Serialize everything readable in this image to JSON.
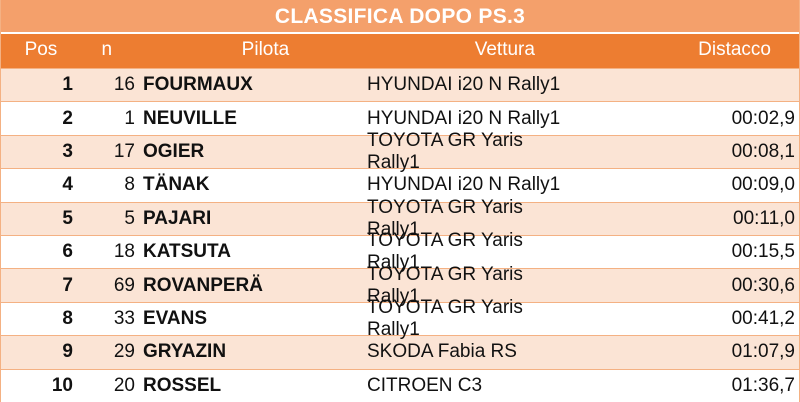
{
  "title": "CLASSIFICA DOPO PS.3",
  "columns": {
    "pos": "Pos",
    "n": "n",
    "pilota": "Pilota",
    "vettura": "Vettura",
    "distacco": "Distacco"
  },
  "rows": [
    {
      "pos": "1",
      "n": "16",
      "pilota": "FOURMAUX",
      "vettura": "HYUNDAI i20 N Rally1",
      "distacco": ""
    },
    {
      "pos": "2",
      "n": "1",
      "pilota": "NEUVILLE",
      "vettura": "HYUNDAI i20 N Rally1",
      "distacco": "00:02,9"
    },
    {
      "pos": "3",
      "n": "17",
      "pilota": "OGIER",
      "vettura": "TOYOTA GR Yaris Rally1",
      "distacco": "00:08,1"
    },
    {
      "pos": "4",
      "n": "8",
      "pilota": "TÄNAK",
      "vettura": "HYUNDAI i20 N Rally1",
      "distacco": "00:09,0"
    },
    {
      "pos": "5",
      "n": "5",
      "pilota": "PAJARI",
      "vettura": "TOYOTA GR Yaris Rally1",
      "distacco": "00:11,0"
    },
    {
      "pos": "6",
      "n": "18",
      "pilota": "KATSUTA",
      "vettura": "TOYOTA GR Yaris Rally1",
      "distacco": "00:15,5"
    },
    {
      "pos": "7",
      "n": "69",
      "pilota": "ROVANPERÄ",
      "vettura": "TOYOTA GR Yaris Rally1",
      "distacco": "00:30,6"
    },
    {
      "pos": "8",
      "n": "33",
      "pilota": "EVANS",
      "vettura": "TOYOTA GR Yaris Rally1",
      "distacco": "00:41,2"
    },
    {
      "pos": "9",
      "n": "29",
      "pilota": "GRYAZIN",
      "vettura": "SKODA Fabia RS",
      "distacco": "01:07,9"
    },
    {
      "pos": "10",
      "n": "20",
      "pilota": "ROSSEL",
      "vettura": "CITROEN C3",
      "distacco": "01:36,7"
    }
  ],
  "colors": {
    "title_bg": "#f4a06b",
    "header_bg": "#ed7d31",
    "band": "#fbe4d5",
    "text": "#111111"
  }
}
